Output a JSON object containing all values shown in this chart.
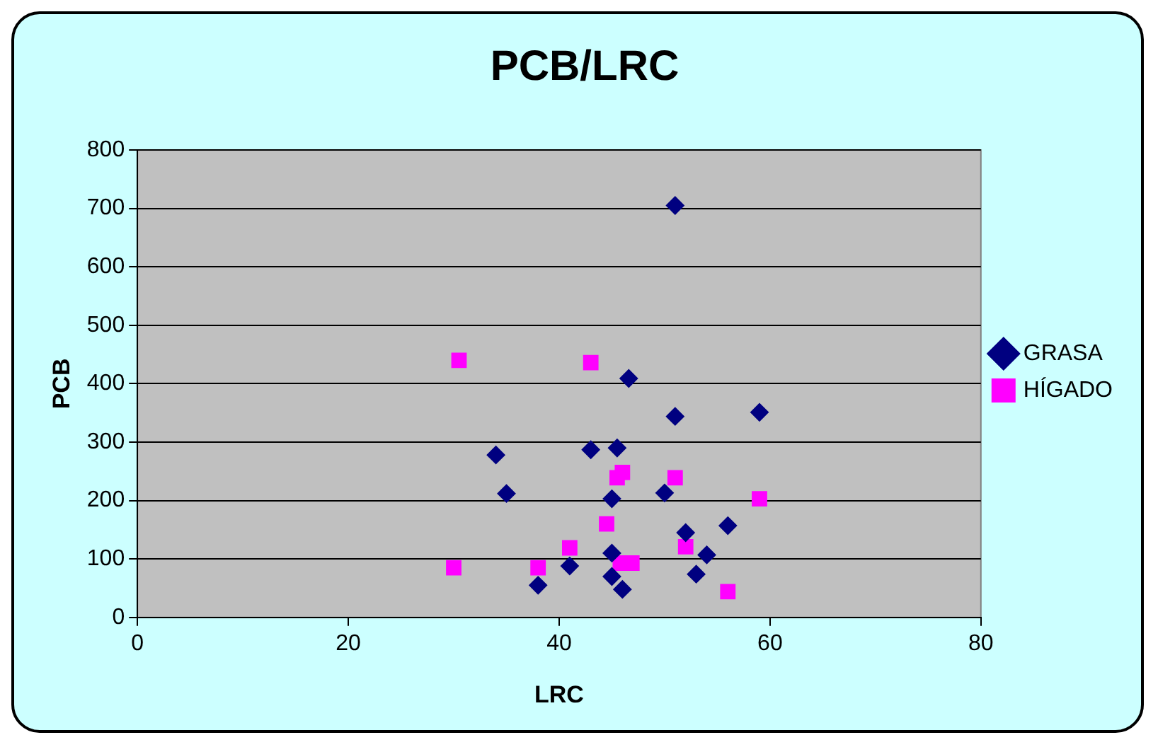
{
  "chart_data": {
    "type": "scatter",
    "title": "PCB/LRC",
    "xlabel": "LRC",
    "ylabel": "PCB",
    "xlim": [
      0,
      80
    ],
    "xticks": [
      0,
      20,
      40,
      60,
      80
    ],
    "ylim": [
      0,
      800
    ],
    "yticks": [
      0,
      100,
      200,
      300,
      400,
      500,
      600,
      700,
      800
    ],
    "grid": "y",
    "legend": "right",
    "series": [
      {
        "name": "GRASA",
        "color": "#000080",
        "marker": "diamond",
        "x": [
          51,
          46.6,
          51,
          59,
          34,
          43,
          45.5,
          35,
          45,
          50,
          52,
          56,
          54,
          53,
          45,
          45,
          46,
          41,
          38
        ],
        "values": [
          705,
          409,
          344,
          351,
          278,
          287,
          290,
          212,
          203,
          213,
          145,
          157,
          107,
          74,
          110,
          70,
          48,
          88,
          55
        ]
      },
      {
        "name": "HÍGADO",
        "color": "#ff00ff",
        "marker": "square",
        "x": [
          30.5,
          43,
          30,
          38,
          41,
          44.5,
          45.5,
          46,
          51,
          59,
          52,
          45.8,
          46.9,
          56
        ],
        "values": [
          440,
          436,
          85,
          85,
          119,
          160,
          239,
          248,
          239,
          203,
          121,
          93,
          93,
          44
        ]
      }
    ]
  }
}
